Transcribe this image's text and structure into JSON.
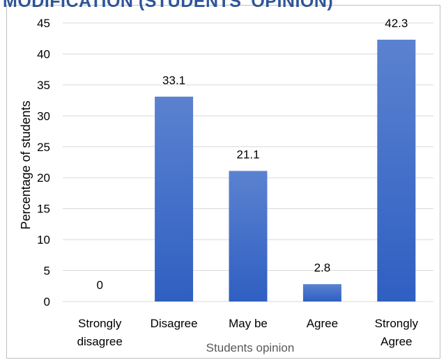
{
  "header": {
    "clipped_title": "MODIFICATION (STUDENTS' OPINION)"
  },
  "colors": {
    "bar_top": "#5b82d0",
    "bar_bottom": "#2f5fc2",
    "grid": "#d9d9d9",
    "text": "#000000",
    "axis_title": "#595959"
  },
  "chart_data": {
    "type": "bar",
    "categories": [
      "Strongly disagree",
      "Disagree",
      "May be",
      "Agree",
      "Strongly Agree"
    ],
    "category_lines": [
      [
        "Strongly",
        "disagree"
      ],
      [
        "Disagree"
      ],
      [
        "May be"
      ],
      [
        "Agree"
      ],
      [
        "Strongly",
        "Agree"
      ]
    ],
    "values": [
      0,
      33.1,
      21.1,
      2.8,
      42.3
    ],
    "data_labels": [
      "0",
      "33.1",
      "21.1",
      "2.8",
      "42.3"
    ],
    "xlabel": "Students opinion",
    "ylabel": "Percentage of students",
    "ylim": [
      0,
      45
    ],
    "yticks": [
      0,
      5,
      10,
      15,
      20,
      25,
      30,
      35,
      40,
      45
    ],
    "grid": true,
    "legend": "none"
  }
}
